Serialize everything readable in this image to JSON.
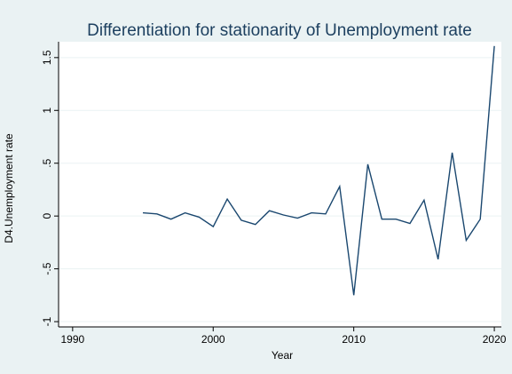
{
  "chart_data": {
    "type": "line",
    "title": "Differentiation for stationarity of Unemployment rate",
    "xlabel": "Year",
    "ylabel": "D4.Unemployment rate",
    "xlim": [
      1989,
      2020.5
    ],
    "ylim": [
      -1.05,
      1.65
    ],
    "x_ticks": [
      1990,
      2000,
      2010,
      2020
    ],
    "x_tick_labels": [
      "1990",
      "2000",
      "2010",
      "2020"
    ],
    "y_ticks": [
      -1,
      -0.5,
      0,
      0.5,
      1,
      1.5
    ],
    "y_tick_labels": [
      "-1",
      "-.5",
      "0",
      ".5",
      "1",
      "1.5"
    ],
    "grid": true,
    "legend": "none",
    "series": [
      {
        "x": [
          1995,
          1996,
          1997,
          1998,
          1999,
          2000,
          2001,
          2002,
          2003,
          2004,
          2005,
          2006,
          2007,
          2008,
          2009,
          2010,
          2011,
          2012,
          2013,
          2014,
          2015,
          2016,
          2017,
          2018,
          2019,
          2020
        ],
        "values": [
          0.03,
          0.02,
          -0.03,
          0.03,
          -0.01,
          -0.1,
          0.16,
          -0.04,
          -0.08,
          0.05,
          0.01,
          -0.02,
          0.03,
          0.02,
          0.28,
          -0.75,
          0.49,
          -0.03,
          -0.03,
          -0.07,
          0.15,
          -0.41,
          0.6,
          -0.23,
          -0.03,
          1.61
        ]
      }
    ],
    "colors": {
      "figure_background": "#eaf2f3",
      "plot_background": "#ffffff",
      "line": "#1a476f",
      "title": "#1c3f5f",
      "grid": "#eaf2f3"
    }
  }
}
